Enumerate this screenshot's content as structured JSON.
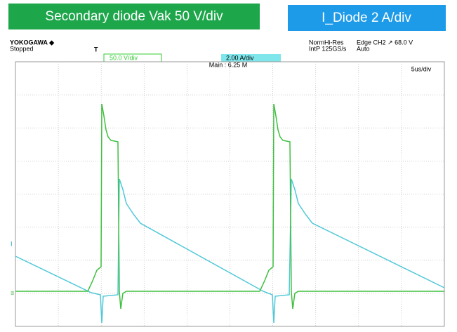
{
  "labels": {
    "voltage": "Secondary diode Vak 50 V/div",
    "current": "I_Diode 2 A/div"
  },
  "scope": {
    "brand": "YOKOGAWA ◆",
    "state": "Stopped",
    "trigger_mark": "T",
    "ch1_scale": "50.0 V/div",
    "ch2_scale": "2.00 A/div",
    "mode_1": "NormHi-Res",
    "mode_2": "IntP 125GS/s",
    "trigger_1": "Edge CH2 ↗ 68.0 V",
    "trigger_2": "Auto",
    "memory": "Main : 6.25 M",
    "timebase": "5us/div",
    "ch2_marker": "I",
    "ch1_marker": "≡"
  }
}
